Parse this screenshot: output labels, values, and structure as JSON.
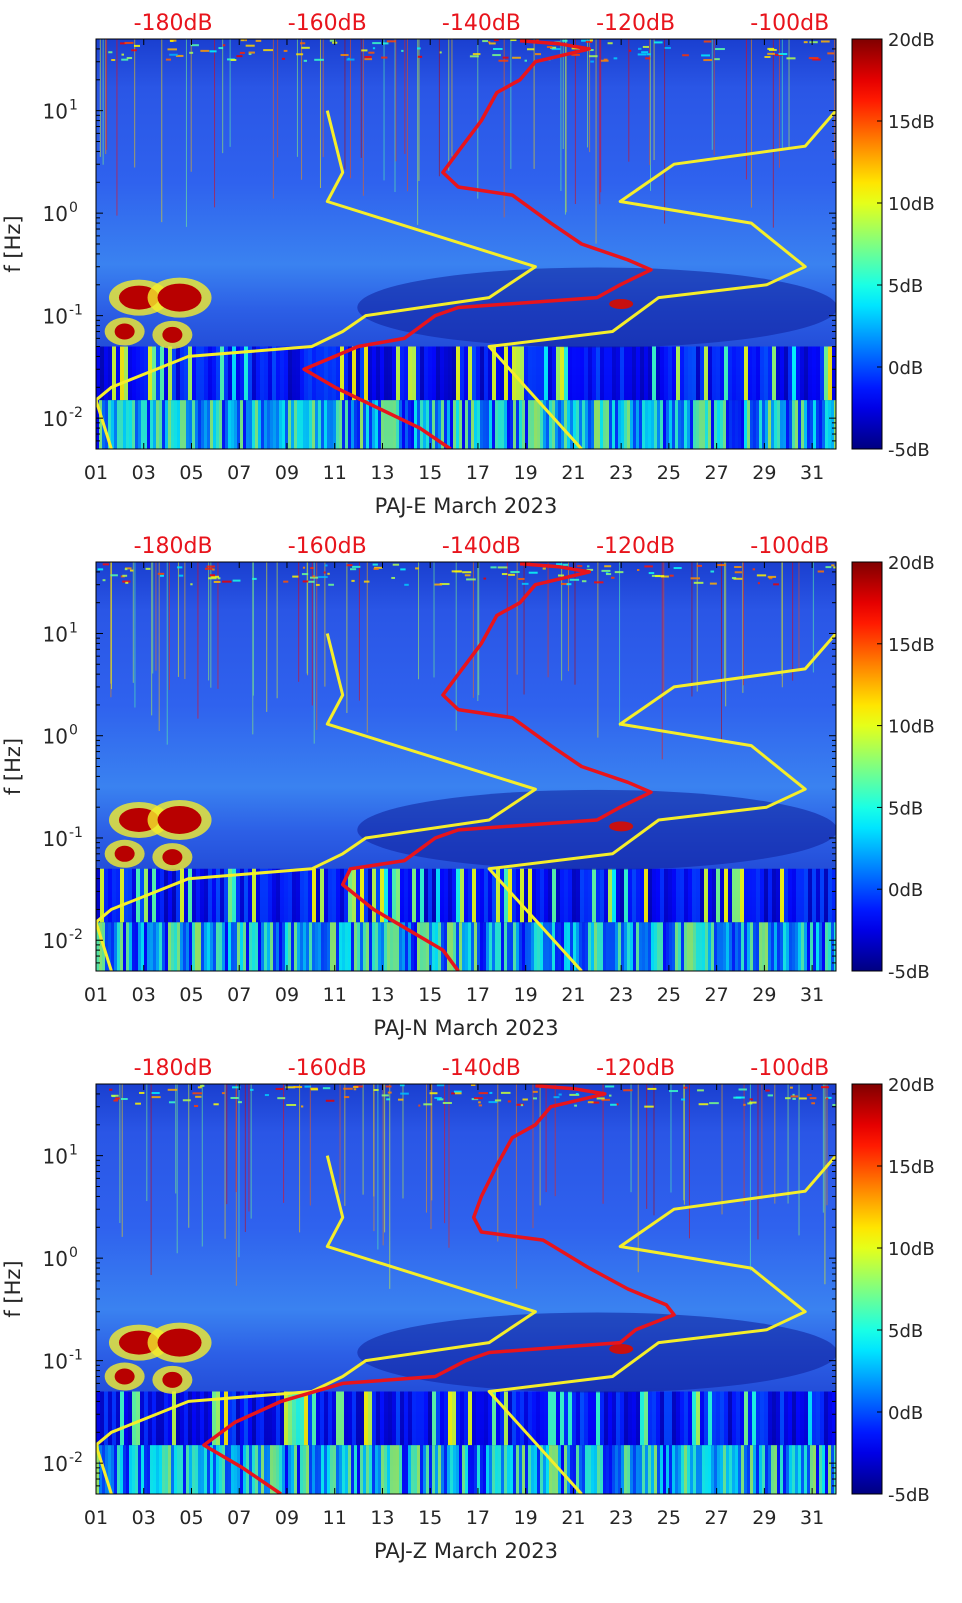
{
  "colorbar": {
    "ticks": [
      20,
      15,
      10,
      5,
      0,
      -5
    ],
    "tick_labels": [
      "20dB",
      "15dB",
      "10dB",
      "5dB",
      "0dB",
      "-5dB"
    ],
    "range": [
      -5,
      20
    ],
    "colormap": "jet"
  },
  "colors": {
    "psd_curve": "#e8141c",
    "noise_model": "#f5ee2a",
    "top_axis_text": "#e8141c"
  },
  "chart_data": [
    {
      "type": "heatmap",
      "xlabel": "PAJ-E March 2023",
      "ylabel": "f [Hz]",
      "x_ticks": [
        "01",
        "03",
        "05",
        "07",
        "09",
        "11",
        "13",
        "15",
        "17",
        "19",
        "21",
        "23",
        "25",
        "27",
        "29",
        "31"
      ],
      "x_range": [
        1,
        32
      ],
      "y_scale": "log",
      "y_range": [
        0.005,
        50
      ],
      "y_ticks": [
        "10^-2",
        "10^-1",
        "10^0",
        "10^1"
      ],
      "top_axis_labels": [
        "-180dB",
        "-160dB",
        "-140dB",
        "-120dB",
        "-100dB"
      ],
      "top_axis_range": [
        -190,
        -94
      ],
      "series": [
        {
          "kind": "model",
          "color": "yellow",
          "points": [
            [
              -160,
              10
            ],
            [
              -158,
              2.5
            ],
            [
              -160,
              1.3
            ],
            [
              -133,
              0.3
            ],
            [
              -139,
              0.15
            ],
            [
              -155,
              0.1
            ],
            [
              -158,
              0.07
            ],
            [
              -162,
              0.05
            ],
            [
              -178,
              0.04
            ],
            [
              -188,
              0.02
            ],
            [
              -190,
              0.015
            ],
            [
              -188,
              0.005
            ]
          ]
        },
        {
          "kind": "model",
          "color": "yellow",
          "points": [
            [
              -94,
              10
            ],
            [
              -98,
              4.5
            ],
            [
              -115,
              3
            ],
            [
              -122,
              1.3
            ],
            [
              -105,
              0.8
            ],
            [
              -98,
              0.3
            ],
            [
              -103,
              0.2
            ],
            [
              -117,
              0.15
            ],
            [
              -123,
              0.07
            ],
            [
              -139,
              0.05
            ],
            [
              -127,
              0.005
            ]
          ]
        },
        {
          "kind": "psd",
          "color": "red",
          "points": [
            [
              -135,
              48
            ],
            [
              -130,
              45
            ],
            [
              -126,
              40
            ],
            [
              -133,
              30
            ],
            [
              -135,
              20
            ],
            [
              -138,
              15
            ],
            [
              -140,
              8
            ],
            [
              -143,
              4
            ],
            [
              -145,
              2.5
            ],
            [
              -143,
              1.8
            ],
            [
              -136,
              1.5
            ],
            [
              -131,
              0.8
            ],
            [
              -127,
              0.5
            ],
            [
              -121,
              0.35
            ],
            [
              -118,
              0.28
            ],
            [
              -122,
              0.2
            ],
            [
              -125,
              0.15
            ],
            [
              -143,
              0.12
            ],
            [
              -146,
              0.1
            ],
            [
              -150,
              0.06
            ],
            [
              -156,
              0.05
            ],
            [
              -163,
              0.03
            ],
            [
              -159,
              0.02
            ],
            [
              -148,
              0.008
            ],
            [
              -144,
              0.005
            ]
          ]
        }
      ]
    },
    {
      "type": "heatmap",
      "xlabel": "PAJ-N March 2023",
      "ylabel": "f [Hz]",
      "x_ticks": [
        "01",
        "03",
        "05",
        "07",
        "09",
        "11",
        "13",
        "15",
        "17",
        "19",
        "21",
        "23",
        "25",
        "27",
        "29",
        "31"
      ],
      "x_range": [
        1,
        32
      ],
      "y_scale": "log",
      "y_range": [
        0.005,
        50
      ],
      "y_ticks": [
        "10^-2",
        "10^-1",
        "10^0",
        "10^1"
      ],
      "top_axis_labels": [
        "-180dB",
        "-160dB",
        "-140dB",
        "-120dB",
        "-100dB"
      ],
      "top_axis_range": [
        -190,
        -94
      ],
      "series": [
        {
          "kind": "model",
          "color": "yellow",
          "points": [
            [
              -160,
              10
            ],
            [
              -158,
              2.5
            ],
            [
              -160,
              1.3
            ],
            [
              -133,
              0.3
            ],
            [
              -139,
              0.15
            ],
            [
              -155,
              0.1
            ],
            [
              -158,
              0.07
            ],
            [
              -162,
              0.05
            ],
            [
              -178,
              0.04
            ],
            [
              -188,
              0.02
            ],
            [
              -190,
              0.015
            ],
            [
              -188,
              0.005
            ]
          ]
        },
        {
          "kind": "model",
          "color": "yellow",
          "points": [
            [
              -94,
              10
            ],
            [
              -98,
              4.5
            ],
            [
              -115,
              3
            ],
            [
              -122,
              1.3
            ],
            [
              -105,
              0.8
            ],
            [
              -98,
              0.3
            ],
            [
              -103,
              0.2
            ],
            [
              -117,
              0.15
            ],
            [
              -123,
              0.07
            ],
            [
              -139,
              0.05
            ],
            [
              -127,
              0.005
            ]
          ]
        },
        {
          "kind": "psd",
          "color": "red",
          "points": [
            [
              -135,
              48
            ],
            [
              -130,
              45
            ],
            [
              -126,
              40
            ],
            [
              -133,
              30
            ],
            [
              -135,
              20
            ],
            [
              -138,
              15
            ],
            [
              -140,
              8
            ],
            [
              -143,
              4
            ],
            [
              -145,
              2.5
            ],
            [
              -143,
              1.8
            ],
            [
              -136,
              1.5
            ],
            [
              -131,
              0.8
            ],
            [
              -127,
              0.5
            ],
            [
              -121,
              0.35
            ],
            [
              -118,
              0.28
            ],
            [
              -122,
              0.2
            ],
            [
              -125,
              0.15
            ],
            [
              -143,
              0.12
            ],
            [
              -146,
              0.1
            ],
            [
              -150,
              0.06
            ],
            [
              -157,
              0.05
            ],
            [
              -158,
              0.035
            ],
            [
              -154,
              0.02
            ],
            [
              -145,
              0.008
            ],
            [
              -143,
              0.005
            ]
          ]
        }
      ]
    },
    {
      "type": "heatmap",
      "xlabel": "PAJ-Z March 2023",
      "ylabel": "f [Hz]",
      "x_ticks": [
        "01",
        "03",
        "05",
        "07",
        "09",
        "11",
        "13",
        "15",
        "17",
        "19",
        "21",
        "23",
        "25",
        "27",
        "29",
        "31"
      ],
      "x_range": [
        1,
        32
      ],
      "y_scale": "log",
      "y_range": [
        0.005,
        50
      ],
      "y_ticks": [
        "10^-2",
        "10^-1",
        "10^0",
        "10^1"
      ],
      "top_axis_labels": [
        "-180dB",
        "-160dB",
        "-140dB",
        "-120dB",
        "-100dB"
      ],
      "top_axis_range": [
        -190,
        -94
      ],
      "series": [
        {
          "kind": "model",
          "color": "yellow",
          "points": [
            [
              -160,
              10
            ],
            [
              -158,
              2.5
            ],
            [
              -160,
              1.3
            ],
            [
              -133,
              0.3
            ],
            [
              -139,
              0.15
            ],
            [
              -155,
              0.1
            ],
            [
              -158,
              0.07
            ],
            [
              -162,
              0.05
            ],
            [
              -178,
              0.04
            ],
            [
              -188,
              0.02
            ],
            [
              -190,
              0.015
            ],
            [
              -188,
              0.005
            ]
          ]
        },
        {
          "kind": "model",
          "color": "yellow",
          "points": [
            [
              -94,
              10
            ],
            [
              -98,
              4.5
            ],
            [
              -115,
              3
            ],
            [
              -122,
              1.3
            ],
            [
              -105,
              0.8
            ],
            [
              -98,
              0.3
            ],
            [
              -103,
              0.2
            ],
            [
              -117,
              0.15
            ],
            [
              -123,
              0.07
            ],
            [
              -139,
              0.05
            ],
            [
              -127,
              0.005
            ]
          ]
        },
        {
          "kind": "psd",
          "color": "red",
          "points": [
            [
              -133,
              48
            ],
            [
              -128,
              45
            ],
            [
              -124,
              40
            ],
            [
              -131,
              30
            ],
            [
              -133,
              20
            ],
            [
              -136,
              15
            ],
            [
              -138,
              8
            ],
            [
              -140,
              4
            ],
            [
              -141,
              2.5
            ],
            [
              -140,
              1.8
            ],
            [
              -132,
              1.5
            ],
            [
              -126,
              0.8
            ],
            [
              -121,
              0.5
            ],
            [
              -116,
              0.35
            ],
            [
              -115,
              0.28
            ],
            [
              -120,
              0.2
            ],
            [
              -122,
              0.15
            ],
            [
              -139,
              0.12
            ],
            [
              -142,
              0.1
            ],
            [
              -146,
              0.07
            ],
            [
              -158,
              0.06
            ],
            [
              -166,
              0.04
            ],
            [
              -172,
              0.025
            ],
            [
              -176,
              0.015
            ],
            [
              -171,
              0.009
            ],
            [
              -166,
              0.005
            ]
          ]
        }
      ]
    }
  ]
}
